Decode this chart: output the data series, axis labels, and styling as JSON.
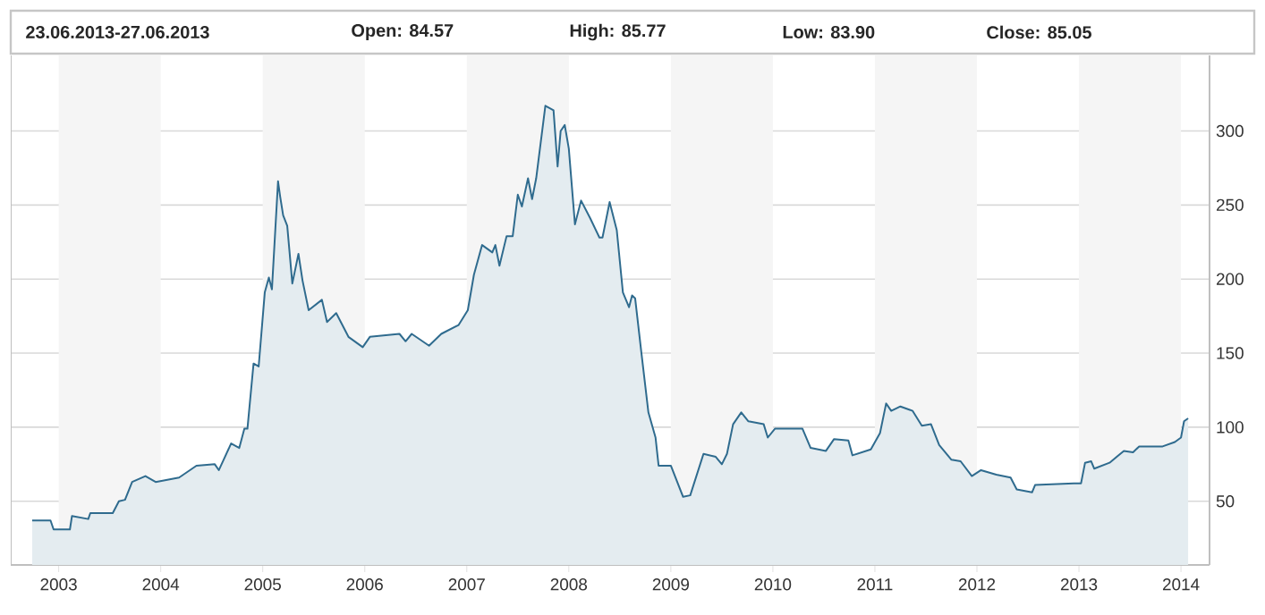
{
  "chart_data": {
    "type": "area",
    "annotations": [
      "23.06.2013-27.06.2013",
      "Open: 84.57",
      "High: 85.77",
      "Low: 83.90",
      "Close: 85.05"
    ],
    "series": [
      {
        "color": "#2f6b8e",
        "x": [
          2002.74,
          2002.92,
          2002.95,
          2003.11,
          2003.13,
          2003.29,
          2003.31,
          2003.53,
          2003.59,
          2003.65,
          2003.72,
          2003.85,
          2003.95,
          2004.18,
          2004.35,
          2004.53,
          2004.57,
          2004.69,
          2004.77,
          2004.82,
          2004.85,
          2004.91,
          2004.96,
          2005.02,
          2005.06,
          2005.09,
          2005.15,
          2005.17,
          2005.2,
          2005.24,
          2005.29,
          2005.35,
          2005.39,
          2005.45,
          2005.58,
          2005.63,
          2005.72,
          2005.84,
          2005.98,
          2006.05,
          2006.34,
          2006.4,
          2006.46,
          2006.63,
          2006.75,
          2006.92,
          2007.01,
          2007.07,
          2007.15,
          2007.25,
          2007.28,
          2007.32,
          2007.39,
          2007.45,
          2007.5,
          2007.54,
          2007.6,
          2007.64,
          2007.68,
          2007.77,
          2007.85,
          2007.89,
          2007.92,
          2007.96,
          2008.0,
          2008.06,
          2008.12,
          2008.21,
          2008.3,
          2008.33,
          2008.4,
          2008.47,
          2008.53,
          2008.59,
          2008.62,
          2008.65,
          2008.71,
          2008.78,
          2008.85,
          2008.88,
          2009.0,
          2009.12,
          2009.19,
          2009.32,
          2009.44,
          2009.5,
          2009.55,
          2009.61,
          2009.69,
          2009.76,
          2009.91,
          2009.95,
          2010.02,
          2010.29,
          2010.37,
          2010.52,
          2010.6,
          2010.74,
          2010.78,
          2010.96,
          2011.05,
          2011.11,
          2011.16,
          2011.25,
          2011.37,
          2011.46,
          2011.55,
          2011.63,
          2011.75,
          2011.84,
          2011.95,
          2012.04,
          2012.19,
          2012.33,
          2012.39,
          2012.54,
          2012.57,
          2012.95,
          2013.02,
          2013.06,
          2013.12,
          2013.15,
          2013.3,
          2013.44,
          2013.53,
          2013.59,
          2013.82,
          2013.94,
          2014.0,
          2014.03,
          2014.07
        ],
        "values": [
          37,
          37,
          31,
          31,
          40,
          38,
          42,
          42,
          50,
          51,
          63,
          67,
          63,
          66,
          74,
          75,
          71,
          89,
          86,
          99,
          99,
          143,
          141,
          191,
          201,
          193,
          266,
          256,
          243,
          236,
          197,
          217,
          199,
          179,
          186,
          171,
          177,
          161,
          154,
          161,
          163,
          158,
          163,
          155,
          163,
          169,
          179,
          203,
          223,
          218,
          223,
          209,
          229,
          229,
          257,
          249,
          268,
          254,
          268,
          317,
          314,
          276,
          300,
          304,
          288,
          237,
          253,
          241,
          228,
          228,
          252,
          233,
          191,
          181,
          189,
          187,
          151,
          110,
          93,
          74,
          74,
          53,
          54,
          82,
          80,
          75,
          82,
          102,
          110,
          104,
          102,
          93,
          99,
          99,
          86,
          84,
          92,
          91,
          81,
          85,
          96,
          116,
          111,
          114,
          111,
          101,
          102,
          88,
          78,
          77,
          67,
          71,
          68,
          66,
          58,
          56,
          61,
          62,
          62,
          76,
          77,
          72,
          76,
          84,
          83,
          87,
          87,
          90,
          93,
          104,
          106
        ]
      }
    ],
    "xlim": [
      2002.53,
      2014.28
    ],
    "ylim": [
      7,
      351
    ],
    "xticks": [
      2003,
      2004,
      2005,
      2006,
      2007,
      2008,
      2009,
      2010,
      2011,
      2012,
      2013,
      2014
    ],
    "yticks": [
      50,
      100,
      150,
      200,
      250,
      300
    ],
    "grid": "y",
    "bands": [
      {
        "axis": "x",
        "from": 2003,
        "to": 2004,
        "color": "#f5f5f5"
      },
      {
        "axis": "x",
        "from": 2005,
        "to": 2006,
        "color": "#f5f5f5"
      },
      {
        "axis": "x",
        "from": 2007,
        "to": 2008,
        "color": "#f5f5f5"
      },
      {
        "axis": "x",
        "from": 2009,
        "to": 2010,
        "color": "#f5f5f5"
      },
      {
        "axis": "x",
        "from": 2011,
        "to": 2012,
        "color": "#f5f5f5"
      },
      {
        "axis": "x",
        "from": 2013,
        "to": 2014,
        "color": "#f5f5f5"
      }
    ]
  }
}
